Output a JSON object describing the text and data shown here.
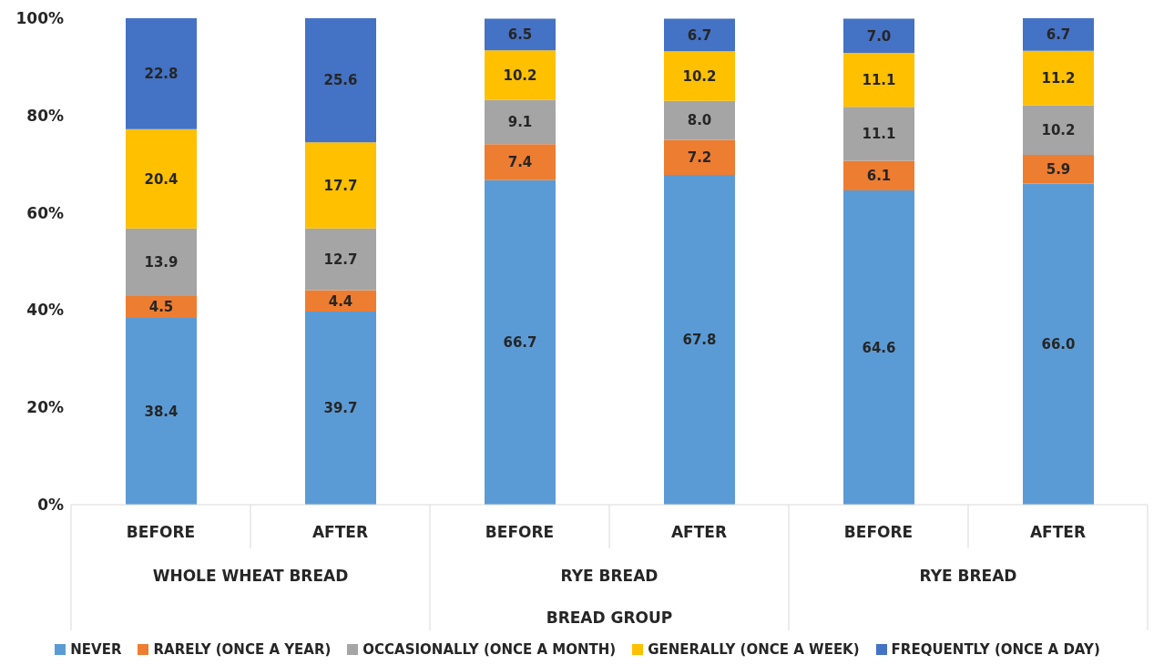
{
  "chart_data": {
    "type": "bar",
    "stacked": true,
    "categories": [
      "BEFORE",
      "AFTER",
      "BEFORE",
      "AFTER",
      "BEFORE",
      "AFTER"
    ],
    "xlabel": "BREAD GROUP",
    "annotations": [
      "WHOLE WHEAT BREAD",
      "RYE BREAD",
      "RYE BREAD"
    ],
    "series": [
      {
        "name": "NEVER",
        "color": "#5b9bd5",
        "values": [
          38.4,
          39.7,
          66.7,
          67.8,
          64.6,
          66.0
        ],
        "value_labels": [
          "38.4",
          "39.7",
          "66.7",
          "67.8",
          "64.6",
          "66.0"
        ]
      },
      {
        "name": "RARELY (ONCE A YEAR)",
        "color": "#ed7d31",
        "values": [
          4.5,
          4.4,
          7.4,
          7.2,
          6.1,
          5.9
        ]
      },
      {
        "name": "OCCASIONALLY (ONCE A MONTH)",
        "color": "#a5a5a5",
        "values": [
          13.9,
          12.7,
          9.1,
          8.0,
          11.1,
          10.2
        ],
        "value_labels": [
          "13.9",
          "12.7",
          "9.1",
          "8.0",
          "11.1",
          "10.2"
        ]
      },
      {
        "name": "GENERALLY (ONCE A WEEK)",
        "color": "#ffc000",
        "values": [
          20.4,
          17.7,
          10.2,
          10.2,
          11.1,
          11.2
        ]
      },
      {
        "name": "FREQUENTLY (ONCE A DAY)",
        "color": "#4472c4",
        "values": [
          22.8,
          25.6,
          6.5,
          6.7,
          7.0,
          6.7
        ],
        "value_labels": [
          "22.8",
          "25.6",
          "6.5",
          "6.7",
          "7.0",
          "6.7"
        ]
      }
    ],
    "ylim": [
      0,
      100
    ],
    "yticks": [
      {
        "value": 0,
        "label": "0%"
      },
      {
        "value": 20,
        "label": "20%"
      },
      {
        "value": 40,
        "label": "40%"
      },
      {
        "value": 60,
        "label": "60%"
      },
      {
        "value": 80,
        "label": "80%"
      },
      {
        "value": 100,
        "label": "100%"
      }
    ],
    "data_labels": true,
    "legend": "bottom",
    "grid": false
  }
}
